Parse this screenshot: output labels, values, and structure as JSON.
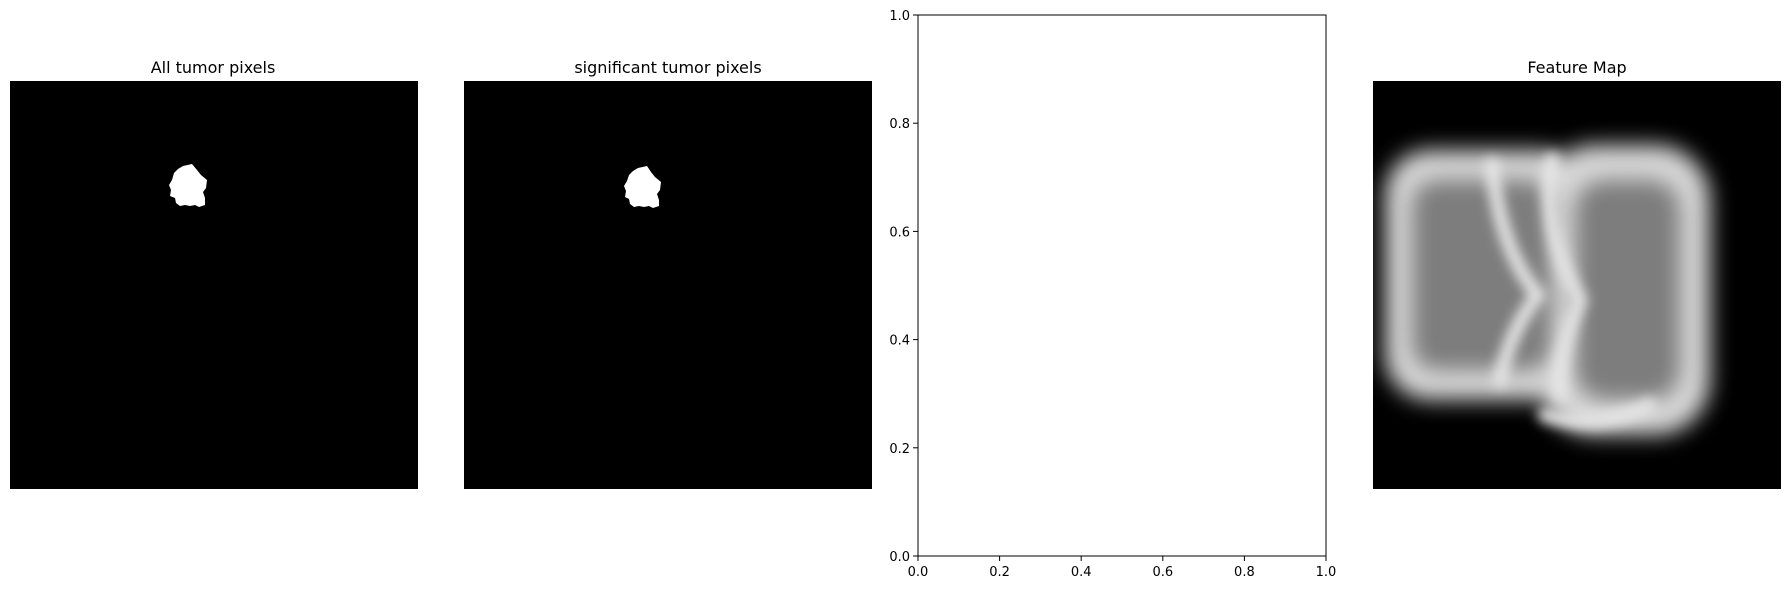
{
  "chart_data": [
    {
      "type": "image",
      "title": "All tumor pixels",
      "colormap": "gray",
      "axis": "off"
    },
    {
      "type": "image",
      "title": "significant tumor pixels",
      "colormap": "gray",
      "axis": "off"
    },
    {
      "type": "scatter",
      "title": "",
      "xlabel": "",
      "ylabel": "",
      "xlim": [
        0.0,
        1.0
      ],
      "ylim": [
        0.0,
        1.0
      ],
      "xticks": [
        "0.0",
        "0.2",
        "0.4",
        "0.6",
        "0.8",
        "1.0"
      ],
      "yticks": [
        "0.0",
        "0.2",
        "0.4",
        "0.6",
        "0.8",
        "1.0"
      ],
      "series": [],
      "grid": false
    },
    {
      "type": "image",
      "title": "Feature Map",
      "colormap": "gray",
      "axis": "off"
    }
  ]
}
